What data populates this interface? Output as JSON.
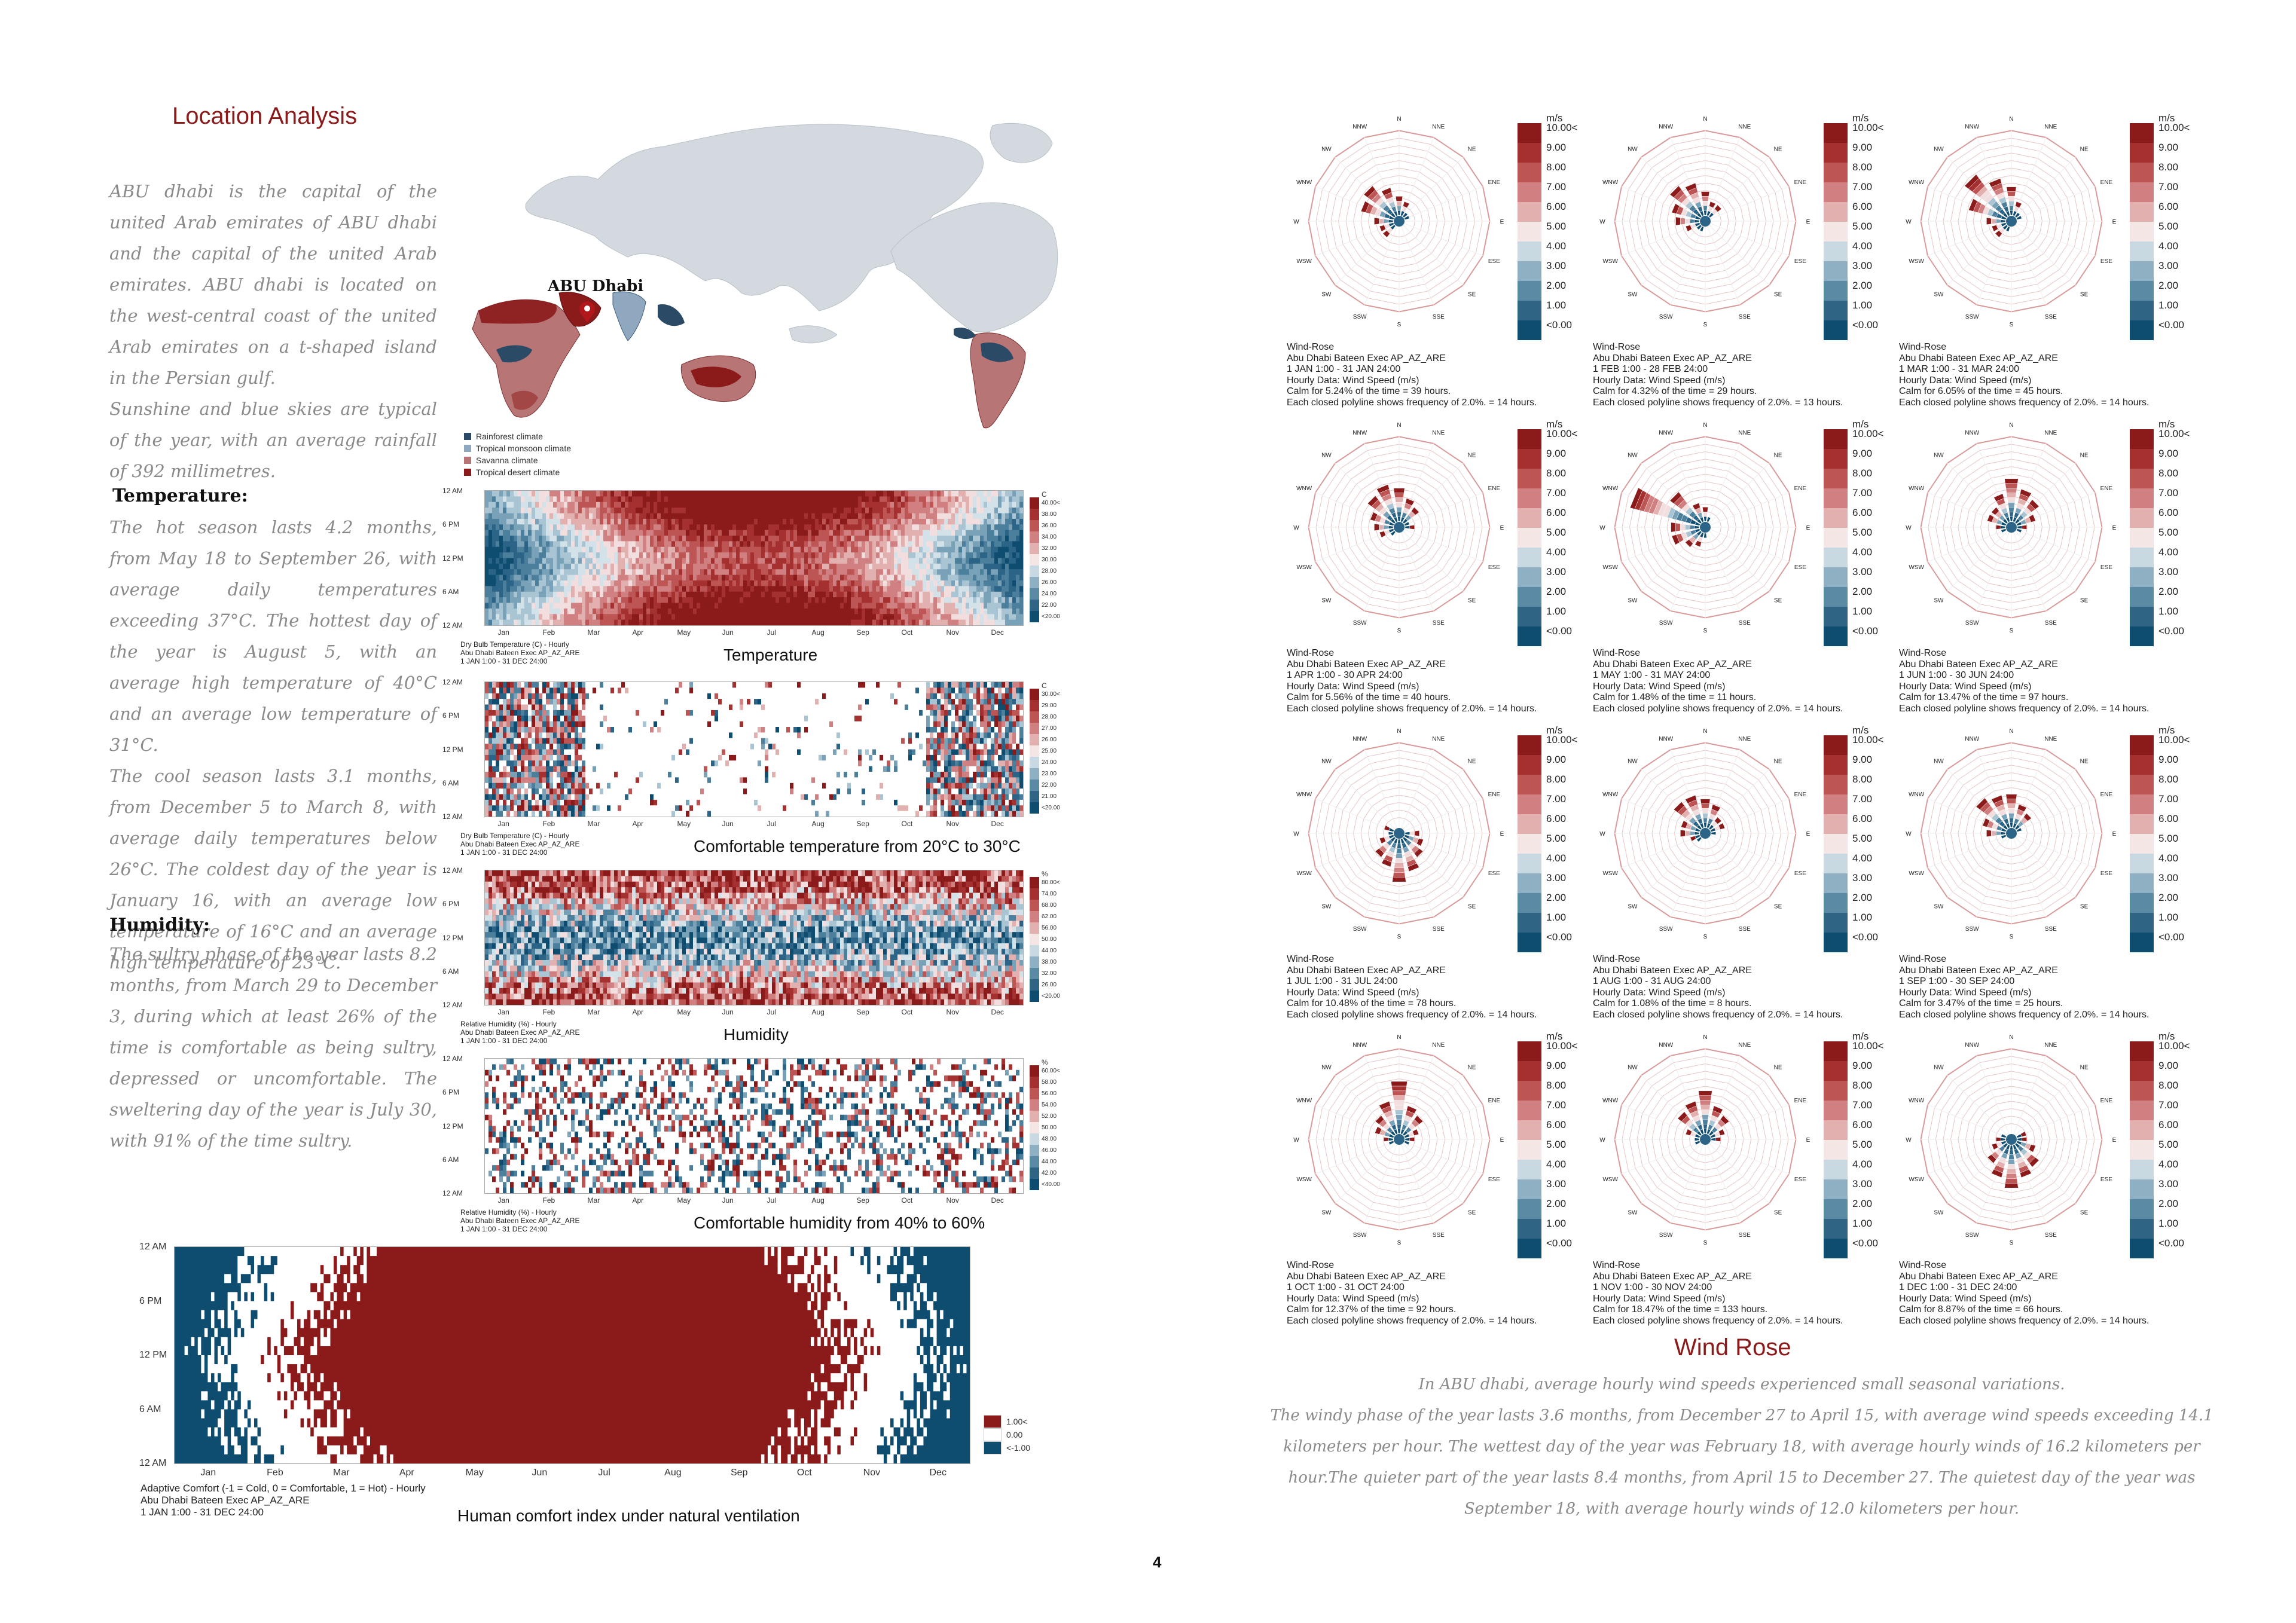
{
  "page_number": "4",
  "colors": {
    "accent_red": "#8b1a1a",
    "deep_blue": "#0f4d70",
    "text_grey": "#8a8a8a",
    "map_land": "#d3d9de"
  },
  "location": {
    "title": "Location Analysis",
    "intro": [
      "ABU dhabi is the capital of the united Arab emirates of ABU dhabi and the capital of the united Arab emirates. ABU dhabi is located on the west-central coast of the united Arab emirates on a t-shaped island in the Persian gulf.",
      "Sunshine and blue skies are typical of the year, with an average rainfall of 392 millimetres."
    ],
    "temperature_heading": "Temperature:",
    "temperature_text": [
      "The hot season lasts 4.2 months, from May 18 to September 26, with average daily temperatures exceeding 37°C. The hottest day of the year is August 5, with an average high temperature of 40°C and an average low temperature of 31°C.",
      "The cool season lasts 3.1 months, from December 5 to March 8, with average daily temperatures below 26°C. The coldest day of the year is January 16, with an average low temperature of 16°C and an average high temperature of 23°C."
    ],
    "humidity_heading": "Humidity:",
    "humidity_text": "The sultry phase of the year lasts 8.2 months, from March 29 to December 3, during which at least 26% of the time is comfortable as being sultry, depressed or uncomfortable. The sweltering day of the year is July 30, with 91% of the time sultry."
  },
  "map": {
    "city_label": "ABU Dhabi",
    "legend": [
      {
        "label": "Rainforest climate",
        "color": "#2b4a66"
      },
      {
        "label": "Tropical monsoon climate",
        "color": "#8fa8bf"
      },
      {
        "label": "Savanna climate",
        "color": "#b87575"
      },
      {
        "label": "Tropical desert climate",
        "color": "#8b1a1a"
      }
    ]
  },
  "heatmaps": {
    "months": [
      "Jan",
      "Feb",
      "Mar",
      "Apr",
      "May",
      "Jun",
      "Jul",
      "Aug",
      "Sep",
      "Oct",
      "Nov",
      "Dec"
    ],
    "hours": [
      "12 AM",
      "6 PM",
      "12 PM",
      "6 AM",
      "12 AM"
    ],
    "charts": [
      {
        "caption": "Temperature",
        "info": "Dry Bulb Temperature (C) - Hourly\nAbu Dhabi Bateen Exec AP_AZ_ARE\n1 JAN 1:00 - 31 DEC 24:00",
        "unit": "C",
        "legend": [
          "40.00<",
          "38.00",
          "36.00",
          "34.00",
          "32.00",
          "30.00",
          "28.00",
          "26.00",
          "24.00",
          "22.00",
          "<20.00"
        ]
      },
      {
        "caption": "Comfortable temperature from 20°C to 30°C",
        "info": "Dry Bulb Temperature (C) - Hourly\nAbu Dhabi Bateen Exec AP_AZ_ARE\n1 JAN 1:00 - 31 DEC 24:00",
        "unit": "C",
        "legend": [
          "30.00<",
          "29.00",
          "28.00",
          "27.00",
          "26.00",
          "25.00",
          "24.00",
          "23.00",
          "22.00",
          "21.00",
          "<20.00"
        ]
      },
      {
        "caption": "Humidity",
        "info": "Relative Humidity (%) - Hourly\nAbu Dhabi Bateen Exec AP_AZ_ARE\n1 JAN 1:00 - 31 DEC 24:00",
        "unit": "%",
        "legend": [
          "80.00<",
          "74.00",
          "68.00",
          "62.00",
          "56.00",
          "50.00",
          "44.00",
          "38.00",
          "32.00",
          "26.00",
          "<20.00"
        ]
      },
      {
        "caption": "Comfortable humidity from 40% to 60%",
        "info": "Relative Humidity (%) - Hourly\nAbu Dhabi Bateen Exec AP_AZ_ARE\n1 JAN 1:00 - 31 DEC 24:00",
        "unit": "%",
        "legend": [
          "60.00<",
          "58.00",
          "56.00",
          "54.00",
          "52.00",
          "50.00",
          "48.00",
          "46.00",
          "44.00",
          "42.00",
          "<40.00"
        ]
      }
    ],
    "comfort": {
      "caption": "Human comfort index under natural ventilation",
      "info": "Adaptive Comfort (-1 = Cold, 0 = Comfortable, 1 = Hot) - Hourly\nAbu Dhabi Bateen Exec AP_AZ_ARE\n1 JAN 1:00 - 31 DEC 24:00",
      "legend": [
        "1.00<",
        "0.00",
        "<-1.00"
      ]
    }
  },
  "wind": {
    "title": "Wind Rose",
    "unit": "m/s",
    "legend": [
      "10.00<",
      "9.00",
      "8.00",
      "7.00",
      "6.00",
      "5.00",
      "4.00",
      "3.00",
      "2.00",
      "1.00",
      "<0.00"
    ],
    "directions": [
      "N",
      "NNE",
      "NE",
      "ENE",
      "E",
      "ESE",
      "SE",
      "SSE",
      "S",
      "SSW",
      "SW",
      "WSW",
      "W",
      "WNW",
      "NW",
      "NNW"
    ],
    "roses": [
      {
        "info": "Wind-Rose\nAbu Dhabi Bateen Exec AP_AZ_ARE\n1 JAN 1:00 - 31 JAN 24:00\nHourly Data: Wind Speed (m/s)\nCalm for 5.24% of the time = 39 hours.\nEach closed polyline shows frequency of 2.0%. = 14 hours."
      },
      {
        "info": "Wind-Rose\nAbu Dhabi Bateen Exec AP_AZ_ARE\n1 FEB 1:00 - 28 FEB 24:00\nHourly Data: Wind Speed (m/s)\nCalm for 4.32% of the time = 29 hours.\nEach closed polyline shows frequency of 2.0%. = 13 hours."
      },
      {
        "info": "Wind-Rose\nAbu Dhabi Bateen Exec AP_AZ_ARE\n1 MAR 1:00 - 31 MAR 24:00\nHourly Data: Wind Speed (m/s)\nCalm for 6.05% of the time = 45 hours.\nEach closed polyline shows frequency of 2.0%. = 14 hours."
      },
      {
        "info": "Wind-Rose\nAbu Dhabi Bateen Exec AP_AZ_ARE\n1 APR 1:00 - 30 APR 24:00\nHourly Data: Wind Speed (m/s)\nCalm for 5.56% of the time = 40 hours.\nEach closed polyline shows frequency of 2.0%. = 14 hours."
      },
      {
        "info": "Wind-Rose\nAbu Dhabi Bateen Exec AP_AZ_ARE\n1 MAY 1:00 - 31 MAY 24:00\nHourly Data: Wind Speed (m/s)\nCalm for 1.48% of the time = 11 hours.\nEach closed polyline shows frequency of 2.0%. = 14 hours."
      },
      {
        "info": "Wind-Rose\nAbu Dhabi Bateen Exec AP_AZ_ARE\n1 JUN 1:00 - 30 JUN 24:00\nHourly Data: Wind Speed (m/s)\nCalm for 13.47% of the time = 97 hours.\nEach closed polyline shows frequency of 2.0%. = 14 hours."
      },
      {
        "info": "Wind-Rose\nAbu Dhabi Bateen Exec AP_AZ_ARE\n1 JUL 1:00 - 31 JUL 24:00\nHourly Data: Wind Speed (m/s)\nCalm for 10.48% of the time = 78 hours.\nEach closed polyline shows frequency of 2.0%. = 14 hours."
      },
      {
        "info": "Wind-Rose\nAbu Dhabi Bateen Exec AP_AZ_ARE\n1 AUG 1:00 - 31 AUG 24:00\nHourly Data: Wind Speed (m/s)\nCalm for 1.08% of the time = 8 hours.\nEach closed polyline shows frequency of 2.0%. = 14 hours."
      },
      {
        "info": "Wind-Rose\nAbu Dhabi Bateen Exec AP_AZ_ARE\n1 SEP 1:00 - 30 SEP 24:00\nHourly Data: Wind Speed (m/s)\nCalm for 3.47% of the time = 25 hours.\nEach closed polyline shows frequency of 2.0%. = 14 hours."
      },
      {
        "info": "Wind-Rose\nAbu Dhabi Bateen Exec AP_AZ_ARE\n1 OCT 1:00 - 31 OCT 24:00\nHourly Data: Wind Speed (m/s)\nCalm for 12.37% of the time = 92 hours.\nEach closed polyline shows frequency of 2.0%. = 14 hours."
      },
      {
        "info": "Wind-Rose\nAbu Dhabi Bateen Exec AP_AZ_ARE\n1 NOV 1:00 - 30 NOV 24:00\nHourly Data: Wind Speed (m/s)\nCalm for 18.47% of the time = 133 hours.\nEach closed polyline shows frequency of 2.0%. = 14 hours."
      },
      {
        "info": "Wind-Rose\nAbu Dhabi Bateen Exec AP_AZ_ARE\n1 DEC 1:00 - 31 DEC 24:00\nHourly Data: Wind Speed (m/s)\nCalm for 8.87% of the time = 66 hours.\nEach closed polyline shows frequency of 2.0%. = 14 hours."
      }
    ],
    "summary": [
      "In ABU dhabi, average hourly wind speeds experienced small seasonal variations.",
      "The windy phase of the year lasts 3.6 months, from December 27 to April 15, with average wind speeds exceeding 14.1 kilometers per hour. The wettest day of the year was February 18, with average hourly winds of 16.2 kilometers per hour.The quieter part of the year lasts 8.4 months, from April 15 to December 27. The quietest day of the year was September 18, with average hourly winds of 12.0 kilometers per hour."
    ]
  }
}
